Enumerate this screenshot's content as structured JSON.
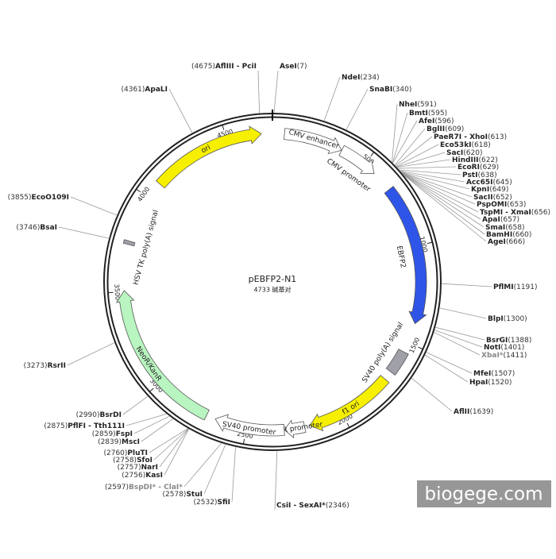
{
  "title": "pEBFP2-N1",
  "length": {
    "value": 4733,
    "label": "4733 碱基对"
  },
  "ring_ticks": [
    500,
    1000,
    1500,
    2000,
    2500,
    3000,
    3500,
    4000,
    4500
  ],
  "features": [
    {
      "name": "CMV enhancer",
      "start": 61,
      "end": 364,
      "color": "#ffffff",
      "shape": "arrow"
    },
    {
      "name": "CMV promoter",
      "start": 365,
      "end": 568,
      "color": "#ffffff",
      "shape": "arrow"
    },
    {
      "name": "EBFP2",
      "start": 679,
      "end": 1398,
      "color": "#2f55e8",
      "shape": "arrow"
    },
    {
      "name": "SV40 poly(A) signal",
      "start": 1552,
      "end": 1673,
      "color": "#a0a0a8",
      "shape": "box"
    },
    {
      "name": "f1 ori",
      "start": 1720,
      "end": 2175,
      "color": "#f6f000",
      "shape": "arrow"
    },
    {
      "name": "AmpR promoter",
      "start": 2202,
      "end": 2306,
      "color": "#ffffff",
      "shape": "arrow"
    },
    {
      "name": "SV40 promoter",
      "start": 2307,
      "end": 2664,
      "color": "#ffffff",
      "shape": "arrow"
    },
    {
      "name": "NeoR/KanR",
      "start": 2712,
      "end": 3506,
      "color": "#b8f5c0",
      "shape": "arrow"
    },
    {
      "name": "HSV TK poly(A) signal",
      "start": 3741,
      "end": 3759,
      "color": "#a0a0a8",
      "shape": "box"
    },
    {
      "name": "ori",
      "start": 4089,
      "end": 4677,
      "color": "#f6f000",
      "shape": "arrow"
    }
  ],
  "sites": [
    {
      "name": "AflIII - PciI",
      "position": {
        "value": 4675,
        "label": "(4675)"
      }
    },
    {
      "name": "AseI",
      "position": {
        "value": 7,
        "label": "(7)"
      }
    },
    {
      "name": "ApaLI",
      "position": {
        "value": 4361,
        "label": "(4361)"
      }
    },
    {
      "name": "NdeI",
      "position": {
        "value": 234,
        "label": "(234)"
      }
    },
    {
      "name": "SnaBI",
      "position": {
        "value": 340,
        "label": "(340)"
      }
    },
    {
      "name": "NheI",
      "position": {
        "value": 591,
        "label": "(591)"
      }
    },
    {
      "name": "BmtI",
      "position": {
        "value": 595,
        "label": "(595)"
      }
    },
    {
      "name": "AfeI",
      "position": {
        "value": 596,
        "label": "(596)"
      }
    },
    {
      "name": "BglII",
      "position": {
        "value": 609,
        "label": "(609)"
      }
    },
    {
      "name": "PaeR7I - XhoI",
      "position": {
        "value": 613,
        "label": "(613)"
      }
    },
    {
      "name": "Eco53kI",
      "position": {
        "value": 618,
        "label": "(618)"
      }
    },
    {
      "name": "SacI",
      "position": {
        "value": 620,
        "label": "(620)"
      }
    },
    {
      "name": "HindIII",
      "position": {
        "value": 622,
        "label": "(622)"
      }
    },
    {
      "name": "EcoRI",
      "position": {
        "value": 629,
        "label": "(629)"
      }
    },
    {
      "name": "PstI",
      "position": {
        "value": 638,
        "label": "(638)"
      }
    },
    {
      "name": "Acc65I",
      "position": {
        "value": 645,
        "label": "(645)"
      }
    },
    {
      "name": "KpnI",
      "position": {
        "value": 649,
        "label": "(649)"
      }
    },
    {
      "name": "SacII",
      "position": {
        "value": 652,
        "label": "(652)"
      }
    },
    {
      "name": "PspOMI",
      "position": {
        "value": 653,
        "label": "(653)"
      }
    },
    {
      "name": "TspMI - XmaI",
      "position": {
        "value": 656,
        "label": "(656)"
      }
    },
    {
      "name": "ApaI",
      "position": {
        "value": 657,
        "label": "(657)"
      }
    },
    {
      "name": "SmaI",
      "position": {
        "value": 658,
        "label": "(658)"
      }
    },
    {
      "name": "BamHI",
      "position": {
        "value": 660,
        "label": "(660)"
      }
    },
    {
      "name": "AgeI",
      "position": {
        "value": 666,
        "label": "(666)"
      }
    },
    {
      "name": "PflMI",
      "position": {
        "value": 1191,
        "label": "(1191)"
      }
    },
    {
      "name": "BlpI",
      "position": {
        "value": 1300,
        "label": "(1300)"
      }
    },
    {
      "name": "BsrGI",
      "position": {
        "value": 1388,
        "label": "(1388)"
      }
    },
    {
      "name": "NotI",
      "position": {
        "value": 1401,
        "label": "(1401)"
      }
    },
    {
      "name": "XbaI*",
      "position": {
        "value": 1411,
        "label": "(1411)"
      },
      "color": "#888888"
    },
    {
      "name": "MfeI",
      "position": {
        "value": 1507,
        "label": "(1507)"
      }
    },
    {
      "name": "HpaI",
      "position": {
        "value": 1520,
        "label": "(1520)"
      }
    },
    {
      "name": "AflII",
      "position": {
        "value": 1639,
        "label": "(1639)"
      }
    },
    {
      "name": "CsiI - SexAI*",
      "position": {
        "value": 2346,
        "label": "(2346)"
      }
    },
    {
      "name": "SfiI",
      "position": {
        "value": 2532,
        "label": "(2532)"
      }
    },
    {
      "name": "StuI",
      "position": {
        "value": 2578,
        "label": "(2578)"
      }
    },
    {
      "name": "BspDI* - ClaI*",
      "position": {
        "value": 2597,
        "label": "(2597)"
      },
      "color": "#888888"
    },
    {
      "name": "KasI",
      "position": {
        "value": 2756,
        "label": "(2756)"
      }
    },
    {
      "name": "NarI",
      "position": {
        "value": 2757,
        "label": "(2757)"
      }
    },
    {
      "name": "SfoI",
      "position": {
        "value": 2758,
        "label": "(2758)"
      }
    },
    {
      "name": "PluTI",
      "position": {
        "value": 2760,
        "label": "(2760)"
      }
    },
    {
      "name": "MscI",
      "position": {
        "value": 2839,
        "label": "(2839)"
      }
    },
    {
      "name": "FspI",
      "position": {
        "value": 2859,
        "label": "(2859)"
      }
    },
    {
      "name": "PflFI - Tth111I",
      "position": {
        "value": 2875,
        "label": "(2875)"
      }
    },
    {
      "name": "BsrDI",
      "position": {
        "value": 2990,
        "label": "(2990)"
      }
    },
    {
      "name": "RsrII",
      "position": {
        "value": 3273,
        "label": "(3273)"
      }
    },
    {
      "name": "BsaI",
      "position": {
        "value": 3746,
        "label": "(3746)"
      }
    },
    {
      "name": "EcoO109I",
      "position": {
        "value": 3855,
        "label": "(3855)"
      }
    }
  ],
  "watermark": "biogege.com"
}
